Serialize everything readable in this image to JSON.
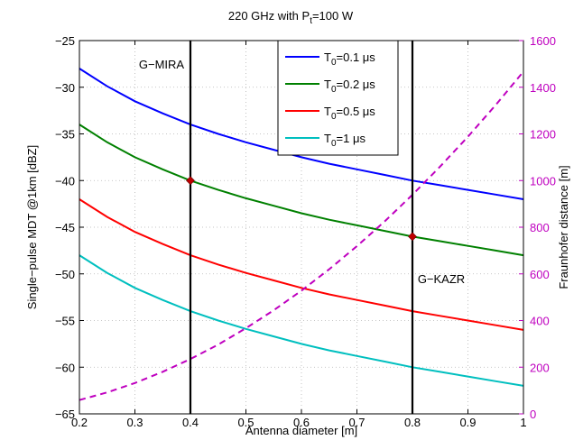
{
  "chart_data": {
    "type": "line",
    "title": {
      "main": "220 GHz with P",
      "sub": "t",
      "rest": "=100 W"
    },
    "xlabel": "Antenna diameter [m]",
    "ylabel": "Single−pulse MDT @1km [dBZ]",
    "y2label": "Fraunhofer distance [m]",
    "xlim": [
      0.2,
      1.0
    ],
    "ylim": [
      -65,
      -25
    ],
    "y2lim": [
      0,
      1600
    ],
    "grid": true,
    "legend_position": "top-center",
    "x_ticks": [
      "0.2",
      "0.3",
      "0.4",
      "0.5",
      "0.6",
      "0.7",
      "0.8",
      "0.9",
      "1"
    ],
    "y_ticks": [
      "−25",
      "−30",
      "−35",
      "−40",
      "−45",
      "−50",
      "−55",
      "−60",
      "−65"
    ],
    "y2_ticks": [
      "1600",
      "1400",
      "1200",
      "1000",
      "800",
      "600",
      "400",
      "200",
      "0"
    ],
    "x": [
      0.2,
      0.25,
      0.3,
      0.35,
      0.4,
      0.45,
      0.5,
      0.55,
      0.6,
      0.65,
      0.7,
      0.75,
      0.8,
      0.85,
      0.9,
      0.95,
      1.0
    ],
    "series": [
      {
        "name_main": "T",
        "name_sub": "0",
        "name_rest": "=0.1 μs",
        "color": "#0000ff",
        "values": [
          -28.0,
          -29.9,
          -31.5,
          -32.8,
          -34.0,
          -35.0,
          -35.9,
          -36.7,
          -37.5,
          -38.2,
          -38.8,
          -39.4,
          -40.0,
          -40.5,
          -41.0,
          -41.5,
          -42.0
        ]
      },
      {
        "name_main": "T",
        "name_sub": "0",
        "name_rest": "=0.2 μs",
        "color": "#008000",
        "values": [
          -34.0,
          -35.9,
          -37.5,
          -38.8,
          -40.0,
          -41.0,
          -41.9,
          -42.7,
          -43.5,
          -44.2,
          -44.8,
          -45.4,
          -46.0,
          -46.5,
          -47.0,
          -47.5,
          -48.0
        ]
      },
      {
        "name_main": "T",
        "name_sub": "0",
        "name_rest": "=0.5 μs",
        "color": "#ff0000",
        "values": [
          -42.0,
          -43.9,
          -45.5,
          -46.8,
          -48.0,
          -49.0,
          -49.9,
          -50.7,
          -51.5,
          -52.2,
          -52.8,
          -53.4,
          -54.0,
          -54.5,
          -55.0,
          -55.5,
          -56.0
        ]
      },
      {
        "name_main": "T",
        "name_sub": "0",
        "name_rest": "=1 μs",
        "color": "#00bfbf",
        "values": [
          -48.0,
          -49.9,
          -51.5,
          -52.8,
          -54.0,
          -55.0,
          -55.9,
          -56.7,
          -57.5,
          -58.2,
          -58.8,
          -59.4,
          -60.0,
          -60.5,
          -61.0,
          -61.5,
          -62.0
        ]
      }
    ],
    "fraunhofer": {
      "color": "#bf00bf",
      "axis": "right",
      "values": [
        59,
        92,
        132,
        180,
        235,
        297,
        367,
        444,
        528,
        620,
        719,
        825,
        939,
        1060,
        1188,
        1324,
        1467
      ]
    },
    "vertical_lines": [
      {
        "x": 0.4,
        "label": "G−MIRA"
      },
      {
        "x": 0.8,
        "label": "G−KAZR"
      }
    ],
    "markers": [
      {
        "x": 0.4,
        "y": -40.0,
        "color": "#c00000"
      },
      {
        "x": 0.8,
        "y": -46.0,
        "color": "#c00000"
      }
    ]
  }
}
